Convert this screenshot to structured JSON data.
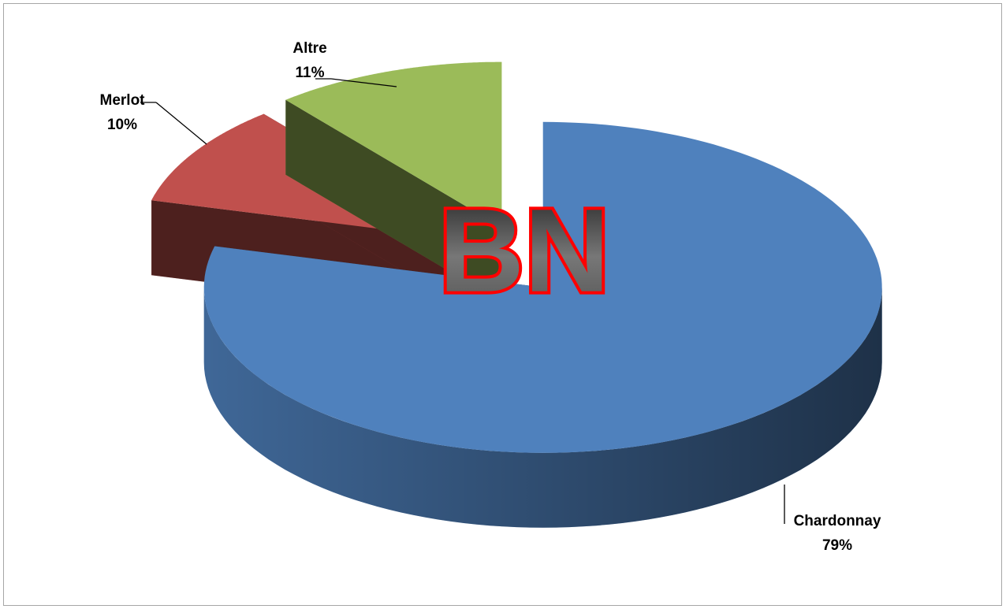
{
  "chart_data": {
    "type": "pie3d",
    "categories": [
      "Chardonnay",
      "Merlot",
      "Altre"
    ],
    "values": [
      79,
      10,
      11
    ],
    "value_labels": [
      "79%",
      "10%",
      "11%"
    ],
    "colors": [
      "#4f81bd",
      "#c0504d",
      "#9bbb59"
    ],
    "watermark": "BN"
  }
}
